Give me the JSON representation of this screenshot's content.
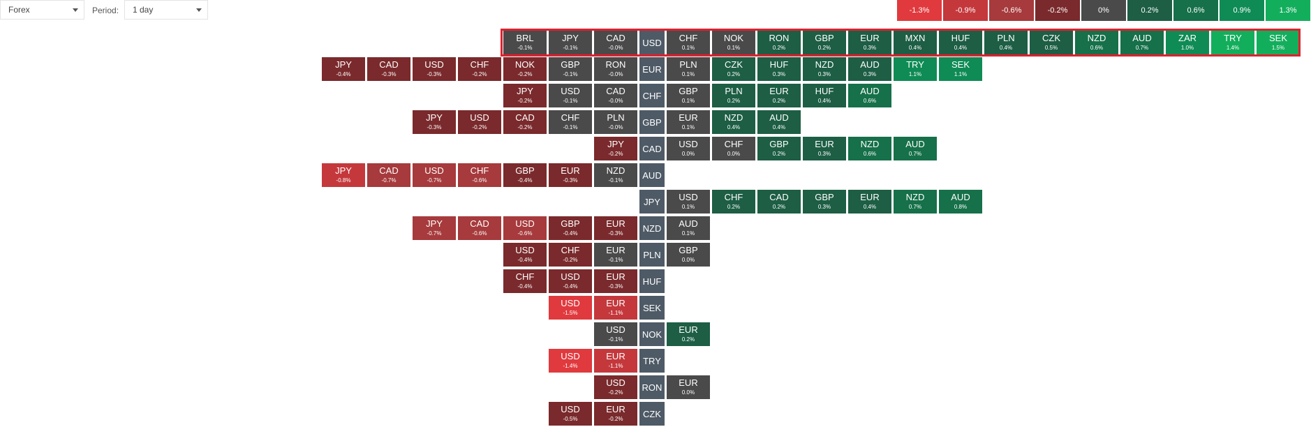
{
  "toolbar": {
    "market_value": "Forex",
    "period_label": "Period:",
    "period_value": "1 day"
  },
  "legend": [
    {
      "label": "-1.3%",
      "color": "#e03a3e"
    },
    {
      "label": "-0.9%",
      "color": "#c4383c"
    },
    {
      "label": "-0.6%",
      "color": "#a63a3c"
    },
    {
      "label": "-0.2%",
      "color": "#7a2a2c"
    },
    {
      "label": "0%",
      "color": "#4a4a4a"
    },
    {
      "label": "0.2%",
      "color": "#1d5e45"
    },
    {
      "label": "0.6%",
      "color": "#167049"
    },
    {
      "label": "0.9%",
      "color": "#0f8b55"
    },
    {
      "label": "1.3%",
      "color": "#13ae5c"
    }
  ],
  "rows": [
    {
      "base": "USD",
      "left": [],
      "right": [
        {
          "cur": "BRL",
          "chg": "-0.1%"
        },
        {
          "cur": "JPY",
          "chg": "-0.1%"
        },
        {
          "cur": "CAD",
          "chg": "-0.0%"
        }
      ],
      "after": [
        {
          "cur": "CHF",
          "chg": "0.1%"
        },
        {
          "cur": "NOK",
          "chg": "0.1%"
        },
        {
          "cur": "RON",
          "chg": "0.2%"
        },
        {
          "cur": "GBP",
          "chg": "0.2%"
        },
        {
          "cur": "EUR",
          "chg": "0.3%"
        },
        {
          "cur": "MXN",
          "chg": "0.4%"
        },
        {
          "cur": "HUF",
          "chg": "0.4%"
        },
        {
          "cur": "PLN",
          "chg": "0.4%"
        },
        {
          "cur": "CZK",
          "chg": "0.5%"
        },
        {
          "cur": "NZD",
          "chg": "0.6%"
        },
        {
          "cur": "AUD",
          "chg": "0.7%"
        },
        {
          "cur": "ZAR",
          "chg": "1.0%"
        },
        {
          "cur": "TRY",
          "chg": "1.4%"
        },
        {
          "cur": "SEK",
          "chg": "1.5%"
        }
      ]
    },
    {
      "base": "EUR",
      "left": [
        {
          "cur": "JPY",
          "chg": "-0.4%"
        },
        {
          "cur": "CAD",
          "chg": "-0.3%"
        },
        {
          "cur": "USD",
          "chg": "-0.3%"
        },
        {
          "cur": "CHF",
          "chg": "-0.2%"
        },
        {
          "cur": "NOK",
          "chg": "-0.2%"
        },
        {
          "cur": "GBP",
          "chg": "-0.1%"
        },
        {
          "cur": "RON",
          "chg": "-0.0%"
        }
      ],
      "after": [
        {
          "cur": "PLN",
          "chg": "0.1%"
        },
        {
          "cur": "CZK",
          "chg": "0.2%"
        },
        {
          "cur": "HUF",
          "chg": "0.3%"
        },
        {
          "cur": "NZD",
          "chg": "0.3%"
        },
        {
          "cur": "AUD",
          "chg": "0.3%"
        },
        {
          "cur": "TRY",
          "chg": "1.1%"
        },
        {
          "cur": "SEK",
          "chg": "1.1%"
        }
      ]
    },
    {
      "base": "CHF",
      "left": [
        {
          "cur": "JPY",
          "chg": "-0.2%"
        },
        {
          "cur": "USD",
          "chg": "-0.1%"
        },
        {
          "cur": "CAD",
          "chg": "-0.0%"
        }
      ],
      "after": [
        {
          "cur": "GBP",
          "chg": "0.1%"
        },
        {
          "cur": "PLN",
          "chg": "0.2%"
        },
        {
          "cur": "EUR",
          "chg": "0.2%"
        },
        {
          "cur": "HUF",
          "chg": "0.4%"
        },
        {
          "cur": "AUD",
          "chg": "0.6%"
        }
      ]
    },
    {
      "base": "GBP",
      "left": [
        {
          "cur": "JPY",
          "chg": "-0.3%"
        },
        {
          "cur": "USD",
          "chg": "-0.2%"
        },
        {
          "cur": "CAD",
          "chg": "-0.2%"
        },
        {
          "cur": "CHF",
          "chg": "-0.1%"
        },
        {
          "cur": "PLN",
          "chg": "-0.0%"
        }
      ],
      "after": [
        {
          "cur": "EUR",
          "chg": "0.1%"
        },
        {
          "cur": "NZD",
          "chg": "0.4%"
        },
        {
          "cur": "AUD",
          "chg": "0.4%"
        }
      ]
    },
    {
      "base": "CAD",
      "left": [
        {
          "cur": "JPY",
          "chg": "-0.2%"
        }
      ],
      "after": [
        {
          "cur": "USD",
          "chg": "0.0%"
        },
        {
          "cur": "CHF",
          "chg": "0.0%"
        },
        {
          "cur": "GBP",
          "chg": "0.2%"
        },
        {
          "cur": "EUR",
          "chg": "0.3%"
        },
        {
          "cur": "NZD",
          "chg": "0.6%"
        },
        {
          "cur": "AUD",
          "chg": "0.7%"
        }
      ]
    },
    {
      "base": "AUD",
      "left": [
        {
          "cur": "JPY",
          "chg": "-0.8%"
        },
        {
          "cur": "CAD",
          "chg": "-0.7%"
        },
        {
          "cur": "USD",
          "chg": "-0.7%"
        },
        {
          "cur": "CHF",
          "chg": "-0.6%"
        },
        {
          "cur": "GBP",
          "chg": "-0.4%"
        },
        {
          "cur": "EUR",
          "chg": "-0.3%"
        },
        {
          "cur": "NZD",
          "chg": "-0.1%"
        }
      ],
      "after": []
    },
    {
      "base": "JPY",
      "left": [],
      "after": [
        {
          "cur": "USD",
          "chg": "0.1%"
        },
        {
          "cur": "CHF",
          "chg": "0.2%"
        },
        {
          "cur": "CAD",
          "chg": "0.2%"
        },
        {
          "cur": "GBP",
          "chg": "0.3%"
        },
        {
          "cur": "EUR",
          "chg": "0.4%"
        },
        {
          "cur": "NZD",
          "chg": "0.7%"
        },
        {
          "cur": "AUD",
          "chg": "0.8%"
        }
      ]
    },
    {
      "base": "NZD",
      "left": [
        {
          "cur": "JPY",
          "chg": "-0.7%"
        },
        {
          "cur": "CAD",
          "chg": "-0.6%"
        },
        {
          "cur": "USD",
          "chg": "-0.6%"
        },
        {
          "cur": "GBP",
          "chg": "-0.4%"
        },
        {
          "cur": "EUR",
          "chg": "-0.3%"
        }
      ],
      "after": [
        {
          "cur": "AUD",
          "chg": "0.1%"
        }
      ]
    },
    {
      "base": "PLN",
      "left": [
        {
          "cur": "USD",
          "chg": "-0.4%"
        },
        {
          "cur": "CHF",
          "chg": "-0.2%"
        },
        {
          "cur": "EUR",
          "chg": "-0.1%"
        }
      ],
      "after": [
        {
          "cur": "GBP",
          "chg": "0.0%"
        }
      ]
    },
    {
      "base": "HUF",
      "left": [
        {
          "cur": "CHF",
          "chg": "-0.4%"
        },
        {
          "cur": "USD",
          "chg": "-0.4%"
        },
        {
          "cur": "EUR",
          "chg": "-0.3%"
        }
      ],
      "after": []
    },
    {
      "base": "SEK",
      "left": [
        {
          "cur": "USD",
          "chg": "-1.5%"
        },
        {
          "cur": "EUR",
          "chg": "-1.1%"
        }
      ],
      "after": []
    },
    {
      "base": "NOK",
      "left": [
        {
          "cur": "USD",
          "chg": "-0.1%"
        }
      ],
      "after": [
        {
          "cur": "EUR",
          "chg": "0.2%"
        }
      ]
    },
    {
      "base": "TRY",
      "left": [
        {
          "cur": "USD",
          "chg": "-1.4%"
        },
        {
          "cur": "EUR",
          "chg": "-1.1%"
        }
      ],
      "after": []
    },
    {
      "base": "RON",
      "left": [
        {
          "cur": "USD",
          "chg": "-0.2%"
        }
      ],
      "after": [
        {
          "cur": "EUR",
          "chg": "0.0%"
        }
      ]
    },
    {
      "base": "CZK",
      "left": [
        {
          "cur": "USD",
          "chg": "-0.5%"
        },
        {
          "cur": "EUR",
          "chg": "-0.2%"
        }
      ],
      "after": []
    }
  ]
}
